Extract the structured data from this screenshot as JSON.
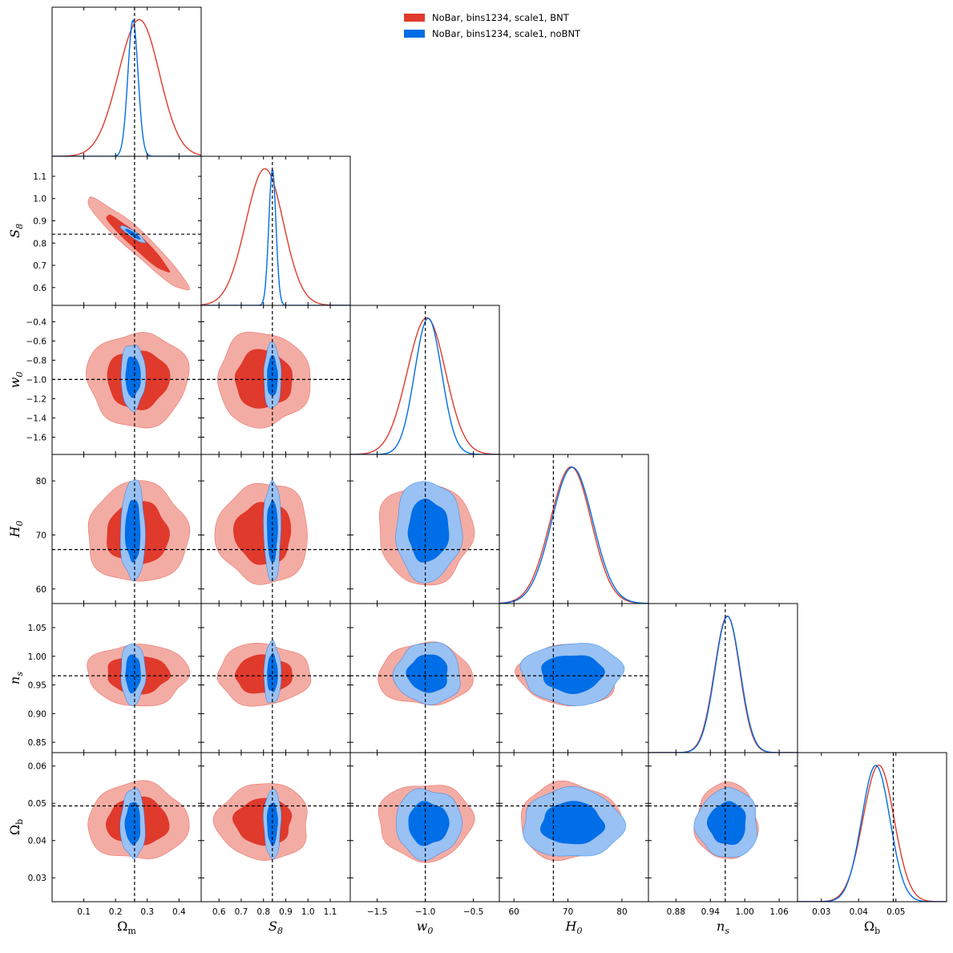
{
  "chart_data": {
    "type": "triangle",
    "title": "",
    "parameters": [
      {
        "key": "Om",
        "label": "Ωm",
        "sym": "Ω",
        "sub": "m",
        "range": [
          0.0,
          0.47
        ],
        "ticks": [
          0.1,
          0.2,
          0.3,
          0.4
        ],
        "tick_labels": [
          "0.1",
          "0.2",
          "0.3",
          "0.4"
        ],
        "fiducial": 0.26
      },
      {
        "key": "S8",
        "label": "S8",
        "sym": "S",
        "sub": "8",
        "range": [
          0.52,
          1.19
        ],
        "ticks": [
          0.6,
          0.7,
          0.8,
          0.9,
          1.0,
          1.1
        ],
        "tick_labels": [
          "0.6",
          "0.7",
          "0.8",
          "0.9",
          "1.0",
          "1.1"
        ],
        "fiducial": 0.84
      },
      {
        "key": "w0",
        "label": "w0",
        "sym": "w",
        "sub": "0",
        "range": [
          -1.78,
          -0.23
        ],
        "ticks": [
          -1.6,
          -1.4,
          -1.2,
          -1.0,
          -0.8,
          -0.6,
          -0.4
        ],
        "tick_labels": [
          "−1.6",
          "−1.4",
          "−1.2",
          "−1.0",
          "−0.8",
          "−0.6",
          "−0.4"
        ],
        "fiducial": -1.0
      },
      {
        "key": "H0",
        "label": "H0",
        "sym": "H",
        "sub": "0",
        "range": [
          57.3,
          84.9
        ],
        "ticks": [
          60,
          70,
          80
        ],
        "tick_labels": [
          "60",
          "70",
          "80"
        ],
        "fiducial": 67.3
      },
      {
        "key": "ns",
        "label": "ns",
        "sym": "n",
        "sub": "s",
        "range": [
          0.832,
          1.092
        ],
        "ticks": [
          0.85,
          0.9,
          0.95,
          1.0,
          1.05
        ],
        "tick_labels": [
          "0.85",
          "0.90",
          "0.95",
          "1.00",
          "1.05"
        ],
        "fiducial": 0.966
      },
      {
        "key": "Ob",
        "label": "Ωb",
        "sym": "Ω",
        "sub": "b",
        "range": [
          0.0236,
          0.0636
        ],
        "ticks": [
          0.03,
          0.04,
          0.05,
          0.06
        ],
        "tick_labels": [
          "0.03",
          "0.04",
          "0.05",
          "0.06"
        ],
        "fiducial": 0.0493
      }
    ],
    "x_tick_overrides": {
      "ns": {
        "ticks": [
          0.88,
          0.94,
          1.0,
          1.06
        ],
        "tick_labels": [
          "0.88",
          "0.94",
          "1.00",
          "1.06"
        ]
      },
      "w0": {
        "ticks": [
          -1.5,
          -1.0,
          -0.5
        ],
        "tick_labels": [
          "−1.5",
          "−1.0",
          "−0.5"
        ]
      },
      "Ob": {
        "ticks": [
          0.03,
          0.04,
          0.05
        ],
        "tick_labels": [
          "0.03",
          "0.04",
          "0.05"
        ]
      }
    },
    "series": [
      {
        "name": "NoBar, bins1234, scale1, BNT",
        "color": "#e03a2c",
        "light": "#f3aca4",
        "mean": {
          "Om": 0.27,
          "S8": 0.8,
          "w0": -1.0,
          "H0": 70.3,
          "ns": 0.968,
          "Ob": 0.0451
        },
        "sigma": {
          "Om": 0.065,
          "S8": 0.085,
          "w0": 0.2,
          "H0": 3.8,
          "ns": 0.022,
          "Ob": 0.0042
        },
        "corr": {
          "Om,S8": -0.95
        }
      },
      {
        "name": "NoBar, bins1234, scale1, noBNT",
        "color": "#006ee6",
        "light": "#99c1f3",
        "mean": {
          "Om": 0.255,
          "S8": 0.84,
          "w0": -0.97,
          "H0": 70.8,
          "ns": 0.97,
          "Ob": 0.0446
        },
        "sigma": {
          "Om": 0.016,
          "S8": 0.016,
          "w0": 0.14,
          "H0": 3.8,
          "ns": 0.022,
          "Ob": 0.0038
        },
        "corr": {
          "Om,S8": -0.9
        }
      }
    ],
    "legend_position": "top-right",
    "fiducial_style": "dashed-black"
  }
}
